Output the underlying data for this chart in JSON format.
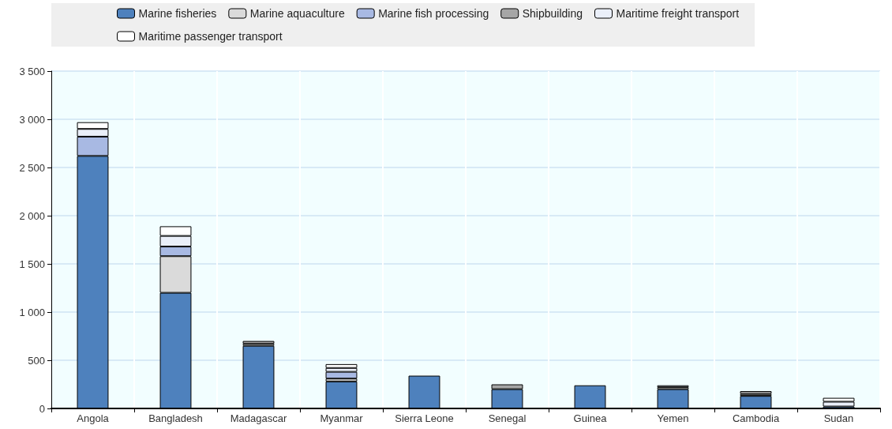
{
  "chart_data": {
    "type": "bar",
    "stacked": true,
    "categories": [
      "Angola",
      "Bangladesh",
      "Madagascar",
      "Myanmar",
      "Sierra Leone",
      "Senegal",
      "Guinea",
      "Yemen",
      "Cambodia",
      "Sudan"
    ],
    "series": [
      {
        "name": "Marine fisheries",
        "color": "#4e81bd",
        "values": [
          2620,
          1200,
          650,
          280,
          340,
          200,
          240,
          200,
          130,
          20
        ]
      },
      {
        "name": "Marine aquaculture",
        "color": "#dadada",
        "values": [
          null,
          380,
          20,
          30,
          null,
          null,
          null,
          20,
          20,
          null
        ]
      },
      {
        "name": "Marine fish processing",
        "color": "#a8b9e3",
        "values": [
          200,
          100,
          null,
          70,
          null,
          null,
          null,
          null,
          null,
          null
        ]
      },
      {
        "name": "Shipbuilding",
        "color": "#a6a6a6",
        "values": [
          null,
          null,
          30,
          null,
          null,
          50,
          null,
          null,
          30,
          null
        ]
      },
      {
        "name": "Maritime freight transport",
        "color": "#eaeff9",
        "values": [
          80,
          110,
          null,
          40,
          null,
          null,
          null,
          20,
          null,
          50
        ]
      },
      {
        "name": "Maritime passenger transport",
        "color": "#ffffff",
        "values": [
          70,
          100,
          null,
          40,
          null,
          null,
          null,
          null,
          null,
          40
        ]
      }
    ],
    "ylim": [
      0,
      3500
    ],
    "yticks": [
      0,
      500,
      {
        "value": 1000,
        "label": "1 000"
      },
      {
        "value": 1500,
        "label": "1 500"
      },
      {
        "value": 2000,
        "label": "2 000"
      },
      {
        "value": 2500,
        "label": "2 500"
      },
      {
        "value": 3000,
        "label": "3 000"
      },
      {
        "value": 3500,
        "label": "3 500"
      }
    ],
    "grid": "y",
    "legend": "top"
  }
}
